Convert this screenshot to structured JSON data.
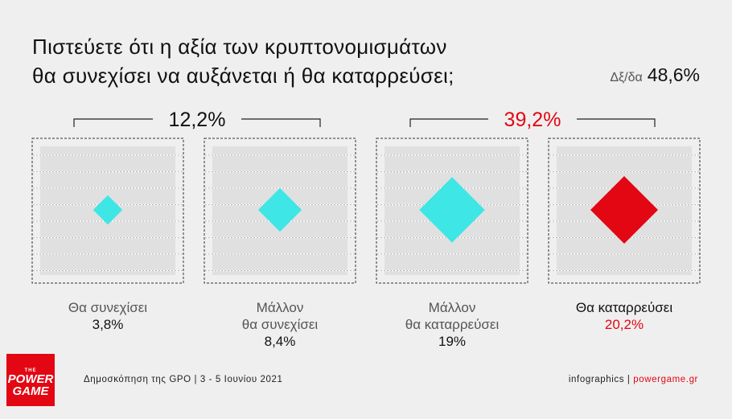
{
  "title": {
    "line1": "Πιστεύετε ότι η αξία των κρυπτονομισμάτων",
    "line2": "θα συνεχίσει να αυξάνεται ή θα καταρρεύσει;"
  },
  "dk": {
    "label": "Δξ/δα",
    "value": "48,6%"
  },
  "groups": [
    {
      "label": "12,2%",
      "color": "#111111"
    },
    {
      "label": "39,2%",
      "color": "#e30613"
    }
  ],
  "chart_data": {
    "type": "diamond-area",
    "title": "Πιστεύετε ότι η αξία των κρυπτονομισμάτων θα συνεχίσει να αυξάνεται ή θα καταρρεύσει;",
    "categories": [
      "Θα συνεχίσει",
      "Μάλλον θα συνεχίσει",
      "Μάλλον θα καταρρεύσει",
      "Θα καταρρεύσει"
    ],
    "values": [
      3.8,
      8.4,
      19,
      20.2
    ],
    "value_labels": [
      "3,8%",
      "8,4%",
      "19%",
      "20,2%"
    ],
    "colors": [
      "#3ee6e6",
      "#3ee6e6",
      "#3ee6e6",
      "#e30613"
    ],
    "group_totals": [
      12.2,
      39.2
    ],
    "dk_na": 48.6
  },
  "captions": [
    {
      "line1": "Θα συνεχίσει",
      "line2": "",
      "value": "3,8%"
    },
    {
      "line1": "Μάλλον",
      "line2": "θα συνεχίσει",
      "value": "8,4%"
    },
    {
      "line1": "Μάλλον",
      "line2": "θα καταρρεύσει",
      "value": "19%"
    },
    {
      "line1": "Θα καταρρεύσει",
      "line2": "",
      "value": "20,2%"
    }
  ],
  "footer": {
    "source": "Δημοσκόπηση της GPO | 3 - 5 Ιουνίου 2021",
    "credit_prefix": "infographics | ",
    "credit_site": "powergame.gr"
  },
  "logo": {
    "the": "THE",
    "line1": "POWER",
    "line2": "GAME"
  }
}
